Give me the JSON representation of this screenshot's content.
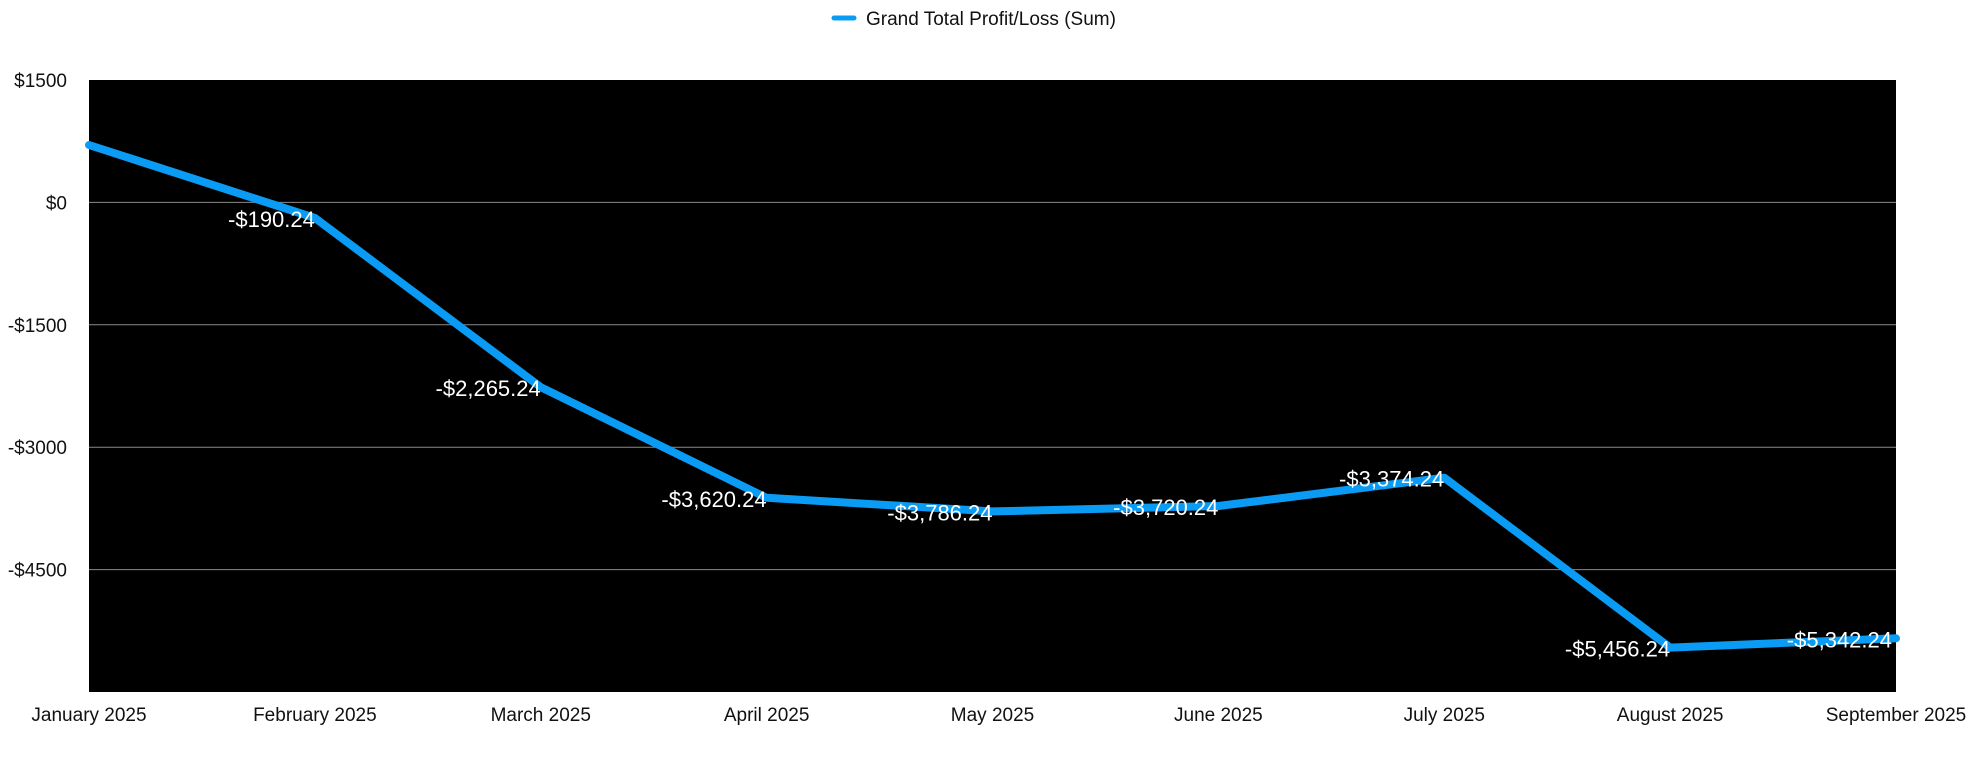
{
  "chart_data": {
    "type": "line",
    "categories": [
      "January 2025",
      "February 2025",
      "March 2025",
      "April 2025",
      "May 2025",
      "June 2025",
      "July 2025",
      "August 2025",
      "September 2025"
    ],
    "series": [
      {
        "name": "Grand Total Profit/Loss (Sum)",
        "values": [
          704,
          -190.24,
          -2265.24,
          -3620.24,
          -3786.24,
          -3720.24,
          -3374.24,
          -5456.24,
          -5342.24
        ],
        "data_labels": [
          "",
          "-$190.24",
          "-$2,265.24",
          "-$3,620.24",
          "-$3,786.24",
          "-$3,720.24",
          "-$3,374.24",
          "-$5,456.24",
          "-$5,342.24"
        ],
        "color": "#0a9cf5"
      }
    ],
    "yticks": [
      1500,
      0,
      -1500,
      -3000,
      -4500
    ],
    "ytick_labels": [
      "$1500",
      "$0",
      "-$1500",
      "-$3000",
      "-$4500"
    ],
    "ylim": [
      -6000,
      1500
    ],
    "plot_background": "#000000",
    "grid_color": "#8a8a8a",
    "grid": true,
    "legend_position": "top-center",
    "title": "",
    "xlabel": "",
    "ylabel": ""
  }
}
